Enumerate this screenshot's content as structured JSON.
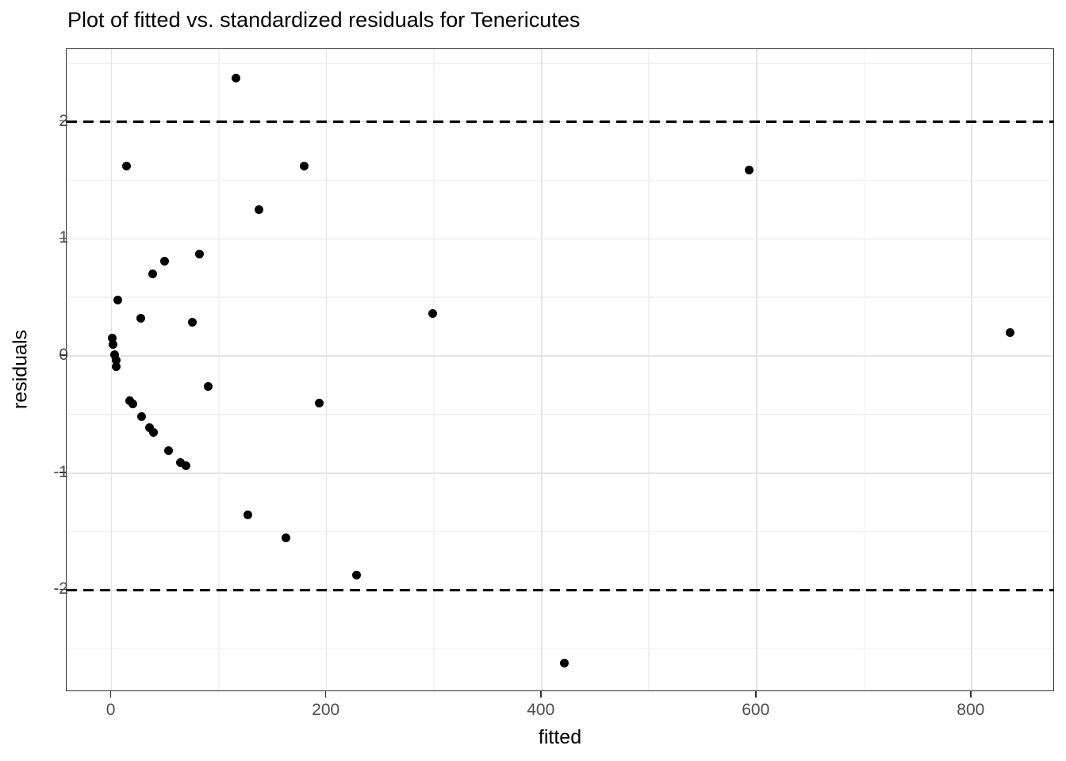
{
  "chart_data": {
    "type": "scatter",
    "title": "Plot of fitted vs. standardized residuals for Tenericutes",
    "xlabel": "fitted",
    "ylabel": "residuals",
    "xlim": [
      -41.8,
      877.6
    ],
    "ylim": [
      -2.87,
      2.62
    ],
    "grid": true,
    "legend": "none",
    "x_major_ticks": [
      {
        "value": 0,
        "label": "0"
      },
      {
        "value": 200,
        "label": "200"
      },
      {
        "value": 400,
        "label": "400"
      },
      {
        "value": 600,
        "label": "600"
      },
      {
        "value": 800,
        "label": "800"
      }
    ],
    "y_major_ticks": [
      {
        "value": 2,
        "label": "2"
      },
      {
        "value": 1,
        "label": "1"
      },
      {
        "value": 0,
        "label": "0"
      },
      {
        "value": -1,
        "label": "-1"
      },
      {
        "value": -2,
        "label": "-2"
      }
    ],
    "x_minor_ticks": [
      100,
      300,
      500,
      700
    ],
    "y_minor_ticks": [
      2.5,
      1.5,
      0.5,
      -0.5,
      -1.5,
      -2.5
    ],
    "reference_lines": [
      {
        "y": 2,
        "style": "dashed"
      },
      {
        "y": -2,
        "style": "dashed"
      }
    ],
    "points": [
      [
        116,
        2.37
      ],
      [
        14,
        1.62
      ],
      [
        179,
        1.62
      ],
      [
        593,
        1.59
      ],
      [
        137,
        1.25
      ],
      [
        82,
        0.87
      ],
      [
        49,
        0.81
      ],
      [
        38,
        0.7
      ],
      [
        6,
        0.48
      ],
      [
        27,
        0.32
      ],
      [
        75,
        0.29
      ],
      [
        299,
        0.36
      ],
      [
        836,
        0.2
      ],
      [
        0.5,
        0.15
      ],
      [
        1,
        0.1
      ],
      [
        3,
        0.01
      ],
      [
        4,
        -0.04
      ],
      [
        4,
        -0.09
      ],
      [
        90,
        -0.26
      ],
      [
        17,
        -0.38
      ],
      [
        20,
        -0.41
      ],
      [
        28,
        -0.52
      ],
      [
        35,
        -0.61
      ],
      [
        39,
        -0.65
      ],
      [
        53,
        -0.81
      ],
      [
        64,
        -0.91
      ],
      [
        69,
        -0.94
      ],
      [
        193,
        -0.4
      ],
      [
        127,
        -1.36
      ],
      [
        162,
        -1.55
      ],
      [
        228,
        -1.87
      ],
      [
        421,
        -2.62
      ]
    ],
    "colors": {
      "point": "#000000",
      "grid_major": "#e4e4e4",
      "grid_minor": "#f2f2f2",
      "panel_border": "#2d2d2d",
      "tick_label": "#4d4d4d",
      "reference_line": "#000000",
      "background": "#ffffff"
    }
  }
}
